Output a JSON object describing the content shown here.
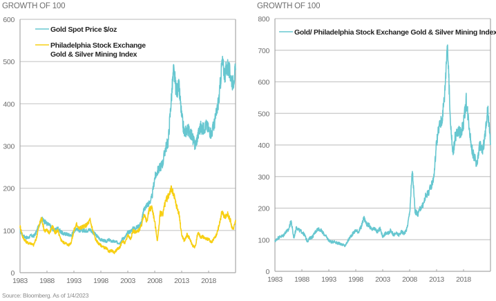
{
  "source_note": "Source: Bloomberg. As of 1/4/2023",
  "colors": {
    "gold": "#67c7d0",
    "xau": "#f7cf13",
    "grid": "#c8c8c8",
    "axis": "#a6a6a6"
  },
  "chart_data": [
    {
      "type": "line",
      "title": "GROWTH OF 100",
      "xlabel": "",
      "ylabel": "",
      "xlim": [
        1983,
        2023
      ],
      "ylim": [
        0,
        600
      ],
      "yticks": [
        "0",
        "100",
        "200",
        "300",
        "400",
        "500",
        "600"
      ],
      "yticks_values": [
        0,
        100,
        200,
        300,
        400,
        500,
        600
      ],
      "xticks": [
        "1983",
        "1988",
        "1993",
        "1998",
        "2003",
        "2008",
        "2013",
        "2018"
      ],
      "xticks_values": [
        1983,
        1988,
        1993,
        1998,
        2003,
        2008,
        2013,
        2018
      ],
      "grid": true,
      "legend_placement": "top-left",
      "series": [
        {
          "name": "Gold Spot Price $/oz",
          "color": "#67c7d0",
          "x": [
            1983,
            1983.5,
            1984,
            1984.5,
            1985,
            1985.5,
            1986,
            1986.5,
            1987,
            1987.5,
            1988,
            1988.5,
            1989,
            1989.5,
            1990,
            1990.5,
            1991,
            1991.5,
            1992,
            1992.5,
            1993,
            1993.5,
            1994,
            1994.5,
            1995,
            1995.5,
            1996,
            1996.5,
            1997,
            1997.5,
            1998,
            1998.5,
            1999,
            1999.5,
            2000,
            2000.5,
            2001,
            2001.5,
            2002,
            2002.5,
            2003,
            2003.5,
            2004,
            2004.5,
            2005,
            2005.5,
            2006,
            2006.5,
            2007,
            2007.5,
            2008,
            2008.5,
            2009,
            2009.5,
            2010,
            2010.5,
            2011,
            2011.5,
            2012,
            2012.5,
            2013,
            2013.5,
            2014,
            2014.5,
            2015,
            2015.5,
            2016,
            2016.5,
            2017,
            2017.5,
            2018,
            2018.5,
            2019,
            2019.5,
            2020,
            2020.5,
            2021,
            2021.5,
            2022,
            2022.5,
            2023
          ],
          "values": [
            100,
            88,
            84,
            82,
            88,
            86,
            95,
            112,
            128,
            122,
            116,
            112,
            104,
            100,
            106,
            98,
            92,
            92,
            90,
            88,
            98,
            106,
            100,
            100,
            100,
            100,
            102,
            96,
            90,
            84,
            78,
            76,
            74,
            78,
            74,
            74,
            72,
            70,
            80,
            84,
            95,
            98,
            105,
            106,
            110,
            118,
            150,
            160,
            165,
            180,
            225,
            240,
            250,
            260,
            295,
            310,
            400,
            480,
            430,
            440,
            370,
            330,
            340,
            335,
            320,
            300,
            325,
            345,
            340,
            350,
            340,
            330,
            350,
            380,
            420,
            500,
            470,
            490,
            470,
            450,
            480
          ]
        },
        {
          "name": "Philadelphia Stock Exchange Gold & Silver Mining Index",
          "color": "#f7cf13",
          "x": [
            1983,
            1983.5,
            1984,
            1984.5,
            1985,
            1985.5,
            1986,
            1986.5,
            1987,
            1987.5,
            1988,
            1988.5,
            1989,
            1989.5,
            1990,
            1990.5,
            1991,
            1991.5,
            1992,
            1992.5,
            1993,
            1993.5,
            1994,
            1994.5,
            1995,
            1995.5,
            1996,
            1996.5,
            1997,
            1997.5,
            1998,
            1998.5,
            1999,
            1999.5,
            2000,
            2000.5,
            2001,
            2001.5,
            2002,
            2002.5,
            2003,
            2003.5,
            2004,
            2004.5,
            2005,
            2005.5,
            2006,
            2006.5,
            2007,
            2007.5,
            2008,
            2008.5,
            2009,
            2009.5,
            2010,
            2010.5,
            2011,
            2011.5,
            2012,
            2012.5,
            2013,
            2013.5,
            2014,
            2014.5,
            2015,
            2015.5,
            2016,
            2016.5,
            2017,
            2017.5,
            2018,
            2018.5,
            2019,
            2019.5,
            2020,
            2020.5,
            2021,
            2021.5,
            2022,
            2022.5,
            2023
          ],
          "values": [
            110,
            85,
            75,
            70,
            70,
            65,
            80,
            110,
            130,
            100,
            100,
            95,
            110,
            95,
            100,
            80,
            72,
            70,
            65,
            72,
            100,
            115,
            105,
            108,
            110,
            115,
            125,
            100,
            80,
            70,
            65,
            60,
            58,
            50,
            52,
            48,
            55,
            60,
            75,
            70,
            90,
            80,
            100,
            95,
            100,
            110,
            140,
            120,
            150,
            155,
            120,
            75,
            140,
            140,
            170,
            180,
            200,
            185,
            160,
            140,
            90,
            75,
            90,
            80,
            65,
            60,
            95,
            85,
            85,
            80,
            80,
            70,
            80,
            90,
            115,
            145,
            130,
            140,
            125,
            100,
            125
          ]
        }
      ]
    },
    {
      "type": "line",
      "title": "GROWTH OF 100",
      "xlabel": "",
      "ylabel": "",
      "xlim": [
        1983,
        2023
      ],
      "ylim": [
        0,
        800
      ],
      "yticks": [
        "0",
        "100",
        "200",
        "300",
        "400",
        "500",
        "600",
        "700",
        "800"
      ],
      "yticks_values": [
        0,
        100,
        200,
        300,
        400,
        500,
        600,
        700,
        800
      ],
      "xticks": [
        "1983",
        "1988",
        "1993",
        "1998",
        "2003",
        "2008",
        "2013",
        "2018"
      ],
      "xticks_values": [
        1983,
        1988,
        1993,
        1998,
        2003,
        2008,
        2013,
        2018
      ],
      "grid": true,
      "legend_placement": "top-left",
      "series": [
        {
          "name": "Gold/ Philadelphia Stock Exchange Gold & Silver Mining Index",
          "color": "#67c7d0",
          "x": [
            1983,
            1983.5,
            1984,
            1984.5,
            1985,
            1985.5,
            1986,
            1986.5,
            1987,
            1987.5,
            1988,
            1988.5,
            1989,
            1989.5,
            1990,
            1990.5,
            1991,
            1991.5,
            1992,
            1992.5,
            1993,
            1993.5,
            1994,
            1994.5,
            1995,
            1995.5,
            1996,
            1996.5,
            1997,
            1997.5,
            1998,
            1998.5,
            1999,
            1999.5,
            2000,
            2000.5,
            2001,
            2001.5,
            2002,
            2002.5,
            2003,
            2003.5,
            2004,
            2004.5,
            2005,
            2005.5,
            2006,
            2006.5,
            2007,
            2007.5,
            2008,
            2008.5,
            2009,
            2009.5,
            2010,
            2010.5,
            2011,
            2011.5,
            2012,
            2012.5,
            2013,
            2013.5,
            2014,
            2014.5,
            2015,
            2015.5,
            2016,
            2016.5,
            2017,
            2017.5,
            2018,
            2018.5,
            2019,
            2019.5,
            2020,
            2020.5,
            2021,
            2021.5,
            2022,
            2022.5,
            2023
          ],
          "values": [
            95,
            105,
            110,
            112,
            125,
            130,
            160,
            105,
            140,
            130,
            125,
            115,
            95,
            105,
            110,
            125,
            135,
            130,
            120,
            110,
            98,
            92,
            95,
            90,
            88,
            85,
            80,
            95,
            110,
            120,
            130,
            125,
            140,
            170,
            150,
            145,
            130,
            135,
            125,
            135,
            110,
            120,
            120,
            130,
            115,
            120,
            115,
            125,
            120,
            135,
            185,
            320,
            190,
            180,
            200,
            210,
            240,
            250,
            270,
            300,
            410,
            460,
            480,
            560,
            730,
            500,
            370,
            430,
            440,
            440,
            470,
            540,
            470,
            390,
            360,
            340,
            400,
            380,
            430,
            510,
            400
          ]
        }
      ]
    }
  ]
}
